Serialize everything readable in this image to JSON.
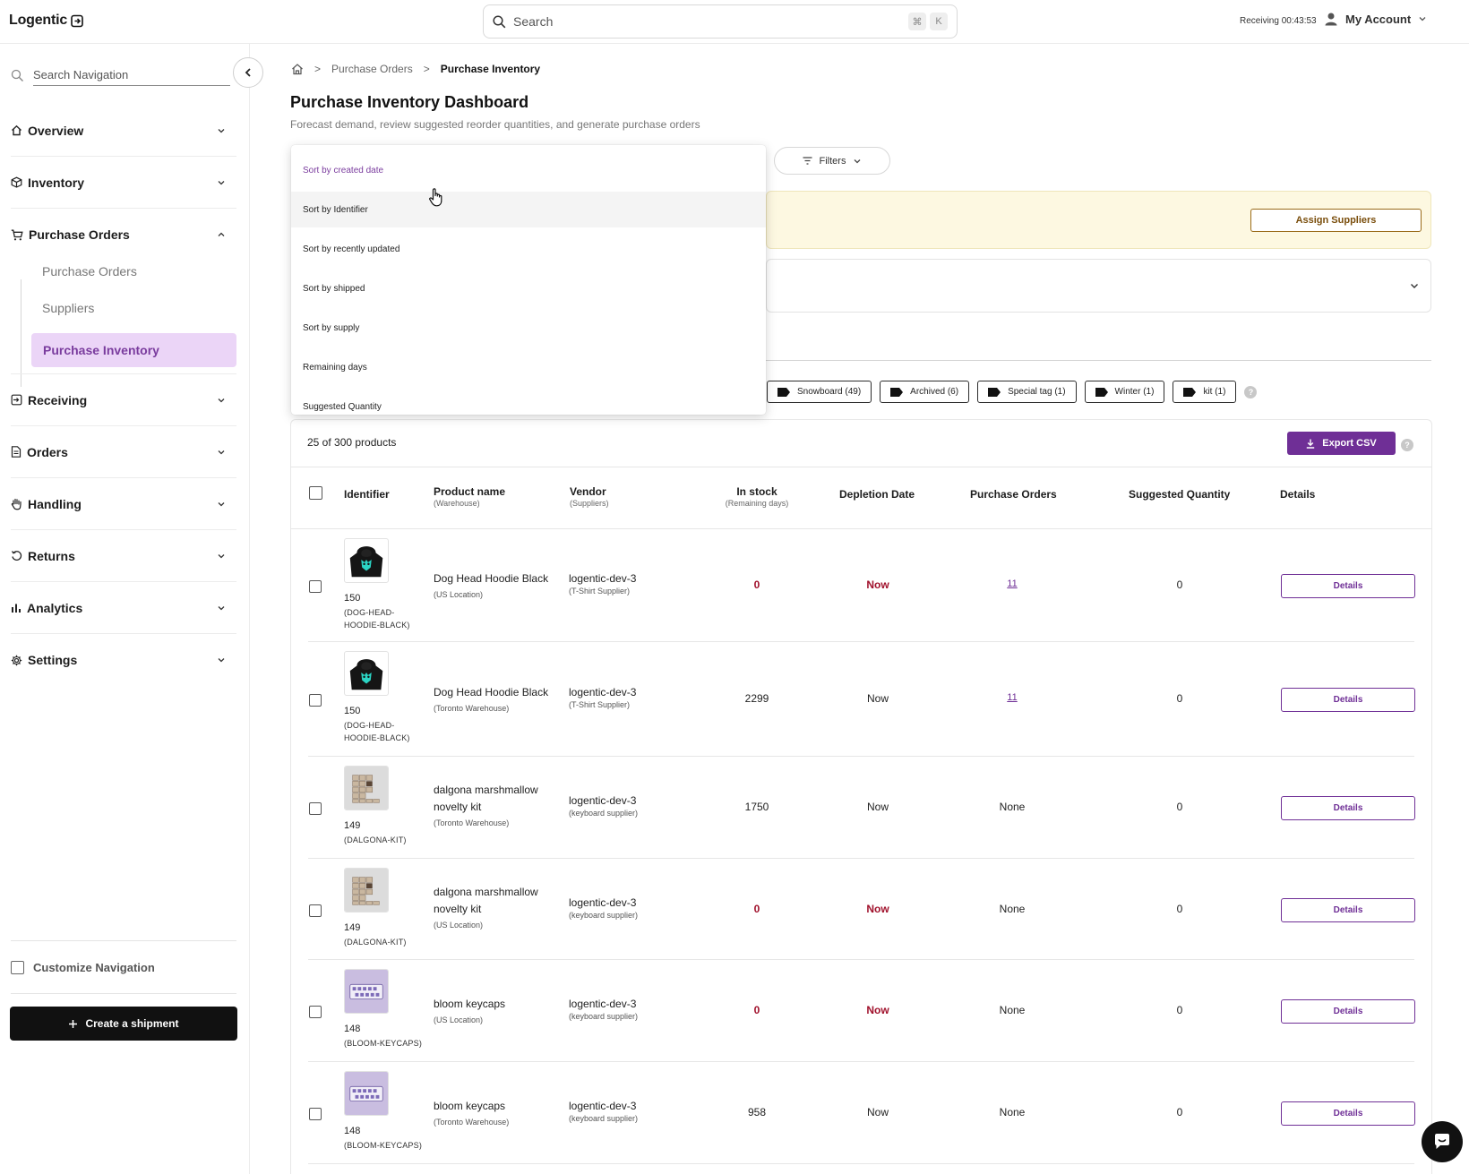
{
  "app": {
    "logo": "Logentic",
    "search_placeholder": "Search",
    "search_shortcut": [
      "⌘",
      "K"
    ],
    "receiving_label": "Receiving 00:43:53",
    "account_label": "My Account"
  },
  "sidebar": {
    "search_placeholder": "Search Navigation",
    "sections": [
      {
        "label": "Overview",
        "icon": "home-icon"
      },
      {
        "label": "Inventory",
        "icon": "box-icon"
      },
      {
        "label": "Purchase Orders",
        "icon": "cart-icon",
        "expanded": true
      },
      {
        "label": "Receiving",
        "icon": "receive-icon"
      },
      {
        "label": "Orders",
        "icon": "document-icon"
      },
      {
        "label": "Handling",
        "icon": "hand-icon"
      },
      {
        "label": "Returns",
        "icon": "return-icon"
      },
      {
        "label": "Analytics",
        "icon": "bar-chart-icon"
      },
      {
        "label": "Settings",
        "icon": "gear-icon"
      }
    ],
    "purchase_orders_sub": [
      "Purchase Orders",
      "Suppliers",
      "Purchase Inventory"
    ],
    "active_sub": "Purchase Inventory",
    "customize_label": "Customize Navigation",
    "create_shipment_label": "Create a shipment"
  },
  "breadcrumb": [
    "Purchase Orders",
    "Purchase Inventory"
  ],
  "page": {
    "title": "Purchase Inventory Dashboard",
    "subtitle": "Forecast demand, review suggested reorder quantities, and generate purchase orders"
  },
  "filters_label": "Filters",
  "assign_suppliers_label": "Assign Suppliers",
  "sort_menu": {
    "options": [
      "Sort by created date",
      "Sort by Identifier",
      "Sort by recently updated",
      "Sort by shipped",
      "Sort by supply",
      "Remaining days",
      "Suggested Quantity"
    ],
    "selected_index": 0,
    "hover_index": 1
  },
  "tags": [
    "Snowboard (49)",
    "Archived (6)",
    "Special tag (1)",
    "Winter (1)",
    "kit (1)"
  ],
  "table": {
    "count_label": "25 of 300 products",
    "export_label": "Export CSV",
    "headers": {
      "identifier": "Identifier",
      "product_name": "Product name",
      "product_name_sub": "(Warehouse)",
      "vendor": "Vendor",
      "vendor_sub": "(Suppliers)",
      "in_stock": "In stock",
      "in_stock_sub": "(Remaining days)",
      "depletion": "Depletion Date",
      "purchase_orders": "Purchase Orders",
      "suggested": "Suggested Quantity",
      "details": "Details"
    },
    "details_label": "Details",
    "rows": [
      {
        "id": "150",
        "sku": "(DOG-HEAD-HOODIE-BLACK)",
        "name": "Dog Head Hoodie Black",
        "warehouse": "(US Location)",
        "vendor": "logentic-dev-3",
        "supplier": "(T-Shirt Supplier)",
        "stock": "0",
        "depletion": "Now",
        "po": "11",
        "suggested": "0",
        "alert": true,
        "thumb": "hoodie"
      },
      {
        "id": "150",
        "sku": "(DOG-HEAD-HOODIE-BLACK)",
        "name": "Dog Head Hoodie Black",
        "warehouse": "(Toronto Warehouse)",
        "vendor": "logentic-dev-3",
        "supplier": "(T-Shirt Supplier)",
        "stock": "2299",
        "depletion": "Now",
        "po": "11",
        "suggested": "0",
        "alert": false,
        "thumb": "hoodie"
      },
      {
        "id": "149",
        "sku": "(DALGONA-KIT)",
        "name": "dalgona marshmallow novelty kit",
        "warehouse": "(Toronto Warehouse)",
        "vendor": "logentic-dev-3",
        "supplier": "(keyboard supplier)",
        "stock": "1750",
        "depletion": "Now",
        "po": "None",
        "suggested": "0",
        "alert": false,
        "thumb": "kit"
      },
      {
        "id": "149",
        "sku": "(DALGONA-KIT)",
        "name": "dalgona marshmallow novelty kit",
        "warehouse": "(US Location)",
        "vendor": "logentic-dev-3",
        "supplier": "(keyboard supplier)",
        "stock": "0",
        "depletion": "Now",
        "po": "None",
        "suggested": "0",
        "alert": true,
        "thumb": "kit"
      },
      {
        "id": "148",
        "sku": "(BLOOM-KEYCAPS)",
        "name": "bloom keycaps",
        "warehouse": "(US Location)",
        "vendor": "logentic-dev-3",
        "supplier": "(keyboard supplier)",
        "stock": "0",
        "depletion": "Now",
        "po": "None",
        "suggested": "0",
        "alert": true,
        "thumb": "keycaps"
      },
      {
        "id": "148",
        "sku": "(BLOOM-KEYCAPS)",
        "name": "bloom keycaps",
        "warehouse": "(Toronto Warehouse)",
        "vendor": "logentic-dev-3",
        "supplier": "(keyboard supplier)",
        "stock": "958",
        "depletion": "Now",
        "po": "None",
        "suggested": "0",
        "alert": false,
        "thumb": "keycaps"
      }
    ]
  },
  "colors": {
    "accent": "#6f2f96",
    "active_nav_bg": "#ebd5f7",
    "alert_red": "#a0102b",
    "warning_bg": "#fdf8e1"
  }
}
